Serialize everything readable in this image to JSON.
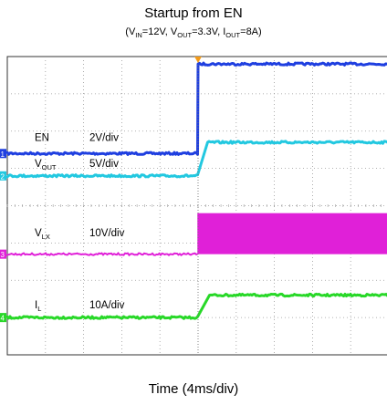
{
  "chart_data": {
    "type": "line",
    "title": "Startup from EN",
    "subtitle": {
      "open": "(V",
      "vin_sub": "IN",
      "vin_val": "=12V, V",
      "vout_sub": "OUT",
      "vout_val": "=3.3V, I",
      "iout_sub": "OUT",
      "iout_val": "=8A)"
    },
    "xlabel": "Time (4ms/div)",
    "grid": true,
    "x_divisions": 10,
    "y_divisions": 8,
    "trigger_time_div": 5,
    "series": [
      {
        "main": "EN",
        "sub": "",
        "scale": "2V/div",
        "marker": "1",
        "color": "#1f3fe0",
        "low_div": 5.4,
        "high_div": 7.8,
        "transition_start_div": 5,
        "transition_end_div": 5
      },
      {
        "main": "V",
        "sub": "OUT",
        "scale": "5V/div",
        "marker": "2",
        "color": "#22c8e0",
        "low_div": 4.8,
        "high_div": 5.7,
        "transition_start_div": 5,
        "transition_end_div": 5.25
      },
      {
        "main": "V",
        "sub": "LX",
        "scale": "10V/div",
        "marker": "3",
        "color": "#e020d8",
        "low_div": 2.7,
        "high_div": 3.8,
        "transition_start_div": 5,
        "transition_end_div": 5,
        "switching": true
      },
      {
        "main": "I",
        "sub": "L",
        "scale": "10A/div",
        "marker": "4",
        "color": "#28d828",
        "low_div": 1.0,
        "high_div": 1.6,
        "transition_start_div": 5,
        "transition_end_div": 5.3
      }
    ]
  }
}
